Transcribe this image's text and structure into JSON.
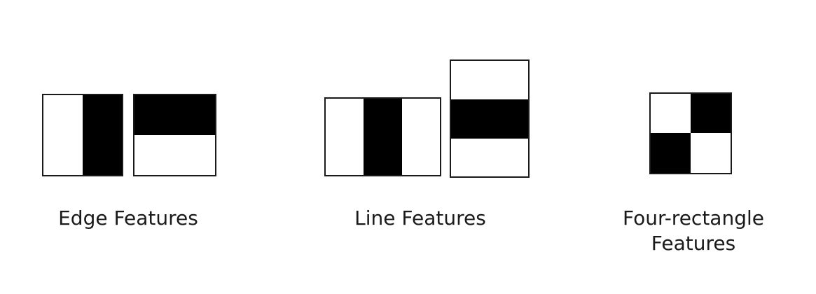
{
  "colors": {
    "fill_dark": "#000000",
    "fill_light": "#ffffff",
    "stroke": "#1a1a1a",
    "text": "#1a1a1a"
  },
  "groups": [
    {
      "id": "edge",
      "caption": "Edge Features",
      "shapes": [
        {
          "kind": "vertical-edge",
          "dark_regions": [
            "right-half"
          ]
        },
        {
          "kind": "horizontal-edge",
          "dark_regions": [
            "top-half"
          ]
        }
      ]
    },
    {
      "id": "line",
      "caption": "Line Features",
      "shapes": [
        {
          "kind": "vertical-line",
          "dark_regions": [
            "middle-third"
          ]
        },
        {
          "kind": "horizontal-line",
          "dark_regions": [
            "middle-third"
          ]
        }
      ]
    },
    {
      "id": "four",
      "caption_line1": "Four-rectangle",
      "caption_line2": "Features",
      "shapes": [
        {
          "kind": "four-rectangle",
          "dark_regions": [
            "top-right",
            "bottom-left"
          ]
        }
      ]
    }
  ]
}
